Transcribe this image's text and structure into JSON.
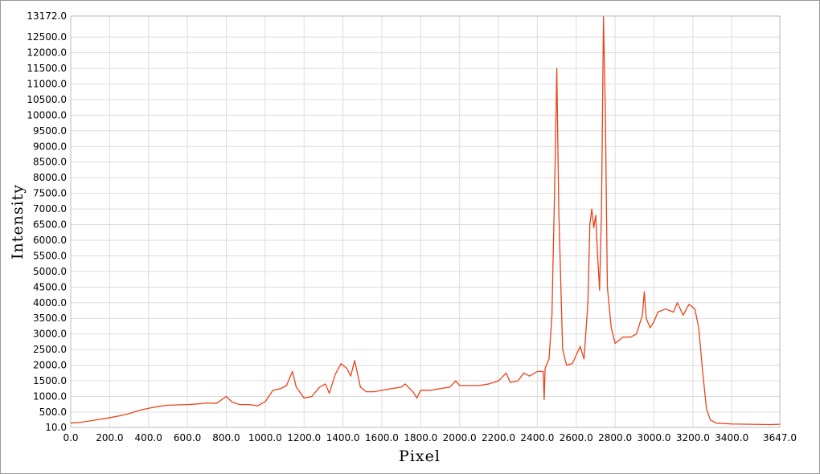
{
  "chart_data": {
    "type": "line",
    "xlabel": "Pixel",
    "ylabel": "Intensity",
    "xlim": [
      0,
      3647
    ],
    "ylim": [
      10,
      13172
    ],
    "xticks": [
      {
        "value": 0,
        "label": "0.0"
      },
      {
        "value": 200,
        "label": "200.0"
      },
      {
        "value": 400,
        "label": "400.0"
      },
      {
        "value": 600,
        "label": "600.0"
      },
      {
        "value": 800,
        "label": "800.0"
      },
      {
        "value": 1000,
        "label": "1000.0"
      },
      {
        "value": 1200,
        "label": "1200.0"
      },
      {
        "value": 1400,
        "label": "1400.0"
      },
      {
        "value": 1600,
        "label": "1600.0"
      },
      {
        "value": 1800,
        "label": "1800.0"
      },
      {
        "value": 2000,
        "label": "2000.0"
      },
      {
        "value": 2200,
        "label": "2200.0"
      },
      {
        "value": 2400,
        "label": "2400.0"
      },
      {
        "value": 2600,
        "label": "2600.0"
      },
      {
        "value": 2800,
        "label": "2800.0"
      },
      {
        "value": 3000,
        "label": "3000.0"
      },
      {
        "value": 3200,
        "label": "3200.0"
      },
      {
        "value": 3400,
        "label": "3400.0"
      },
      {
        "value": 3647,
        "label": "3647.0"
      }
    ],
    "yticks": [
      {
        "value": 10,
        "label": "10.0"
      },
      {
        "value": 500,
        "label": "500.0"
      },
      {
        "value": 1000,
        "label": "1000.0"
      },
      {
        "value": 1500,
        "label": "1500.0"
      },
      {
        "value": 2000,
        "label": "2000.0"
      },
      {
        "value": 2500,
        "label": "2500.0"
      },
      {
        "value": 3000,
        "label": "3000.0"
      },
      {
        "value": 3500,
        "label": "3500.0"
      },
      {
        "value": 4000,
        "label": "4000.0"
      },
      {
        "value": 4500,
        "label": "4500.0"
      },
      {
        "value": 5000,
        "label": "5000.0"
      },
      {
        "value": 5500,
        "label": "5500.0"
      },
      {
        "value": 6000,
        "label": "6000.0"
      },
      {
        "value": 6500,
        "label": "6500.0"
      },
      {
        "value": 7000,
        "label": "7000.0"
      },
      {
        "value": 7500,
        "label": "7500.0"
      },
      {
        "value": 8000,
        "label": "8000.0"
      },
      {
        "value": 8500,
        "label": "8500.0"
      },
      {
        "value": 9000,
        "label": "9000.0"
      },
      {
        "value": 9500,
        "label": "9500.0"
      },
      {
        "value": 10000,
        "label": "10000.0"
      },
      {
        "value": 10500,
        "label": "10500.0"
      },
      {
        "value": 11000,
        "label": "11000.0"
      },
      {
        "value": 11500,
        "label": "11500.0"
      },
      {
        "value": 12000,
        "label": "12000.0"
      },
      {
        "value": 12500,
        "label": "12500.0"
      },
      {
        "value": 13172,
        "label": "13172.0"
      }
    ],
    "grid": true,
    "color": "#e8431a",
    "x": [
      0,
      50,
      100,
      150,
      200,
      250,
      300,
      350,
      400,
      450,
      500,
      550,
      600,
      650,
      700,
      750,
      800,
      830,
      870,
      920,
      960,
      1000,
      1040,
      1080,
      1110,
      1140,
      1160,
      1200,
      1240,
      1280,
      1310,
      1330,
      1360,
      1390,
      1420,
      1440,
      1460,
      1490,
      1520,
      1560,
      1600,
      1650,
      1700,
      1720,
      1760,
      1780,
      1800,
      1850,
      1900,
      1950,
      1980,
      2000,
      2050,
      2100,
      2150,
      2200,
      2240,
      2260,
      2300,
      2330,
      2360,
      2400,
      2430,
      2435,
      2440,
      2460,
      2475,
      2490,
      2500,
      2510,
      2530,
      2550,
      2580,
      2620,
      2640,
      2660,
      2670,
      2680,
      2690,
      2700,
      2710,
      2720,
      2730,
      2740,
      2750,
      2760,
      2780,
      2800,
      2840,
      2880,
      2910,
      2940,
      2950,
      2960,
      2980,
      3000,
      3020,
      3060,
      3100,
      3120,
      3150,
      3180,
      3210,
      3230,
      3250,
      3270,
      3290,
      3320,
      3400,
      3500,
      3600,
      3647
    ],
    "values": [
      150,
      170,
      220,
      270,
      320,
      380,
      450,
      550,
      620,
      680,
      720,
      730,
      740,
      760,
      790,
      780,
      1000,
      820,
      740,
      740,
      700,
      830,
      1200,
      1250,
      1350,
      1800,
      1300,
      950,
      1000,
      1300,
      1400,
      1100,
      1700,
      2050,
      1900,
      1650,
      2150,
      1300,
      1150,
      1150,
      1200,
      1250,
      1300,
      1400,
      1150,
      950,
      1200,
      1200,
      1250,
      1300,
      1500,
      1350,
      1350,
      1350,
      1400,
      1500,
      1750,
      1450,
      1500,
      1750,
      1650,
      1800,
      1800,
      900,
      1900,
      2200,
      3600,
      8000,
      11500,
      7000,
      2500,
      2000,
      2050,
      2600,
      2200,
      4000,
      6500,
      7000,
      6400,
      6800,
      5500,
      4400,
      7000,
      13150,
      10000,
      4500,
      3200,
      2700,
      2900,
      2900,
      3000,
      3600,
      4350,
      3500,
      3200,
      3400,
      3700,
      3800,
      3700,
      4000,
      3600,
      3950,
      3800,
      3200,
      1800,
      600,
      250,
      150,
      120,
      110,
      100,
      110
    ]
  }
}
